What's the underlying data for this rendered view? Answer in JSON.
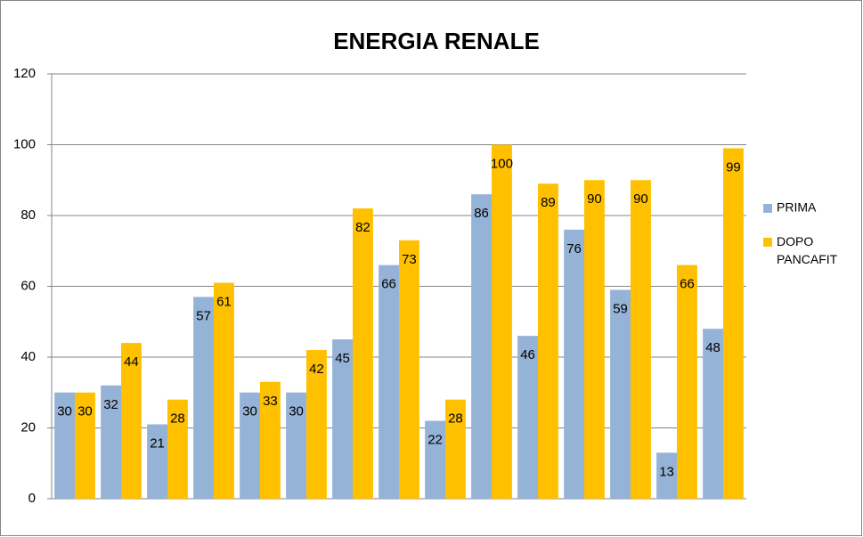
{
  "chart_data": {
    "type": "bar",
    "title": "ENERGIA RENALE",
    "categories": [
      null,
      null,
      null,
      null,
      null,
      null,
      null,
      null,
      null,
      null,
      null,
      null,
      null,
      null,
      null
    ],
    "series": [
      {
        "name": "PRIMA",
        "color": "#95b3d7",
        "values": [
          30,
          32,
          21,
          57,
          30,
          30,
          45,
          66,
          22,
          86,
          46,
          76,
          59,
          13,
          48
        ]
      },
      {
        "name": "DOPO PANCAFIT",
        "color": "#ffc000",
        "values": [
          30,
          44,
          28,
          61,
          33,
          42,
          82,
          73,
          28,
          100,
          89,
          90,
          90,
          66,
          99
        ]
      }
    ],
    "ylim": [
      0,
      120
    ],
    "yticks": [
      0,
      20,
      40,
      60,
      80,
      100,
      120
    ],
    "grid": true,
    "legend": "right"
  }
}
